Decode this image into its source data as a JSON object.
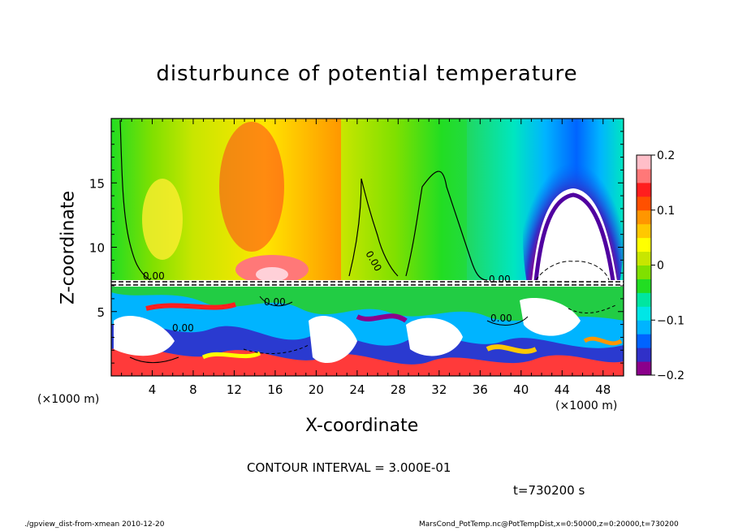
{
  "figure": {
    "title": "disturbunce of potential temperature",
    "x_unit_left": "(×1000 m)",
    "x_unit_right": "(×1000 m)",
    "contour_interval": "CONTOUR INTERVAL = 3.000E-01",
    "time_label": "t=730200 s",
    "footer_left": "./gpview_dist-from-xmean   2010-12-20",
    "footer_right": "MarsCond_PotTemp.nc@PotTempDist,x=0:50000,z=0:20000,t=730200"
  },
  "chart_data": {
    "type": "heatmap",
    "title": "disturbunce of potential temperature",
    "xlabel": "X-coordinate",
    "ylabel": "Z-coordinate",
    "x_ticks": [
      4,
      8,
      12,
      16,
      20,
      24,
      28,
      32,
      36,
      40,
      44,
      48
    ],
    "y_ticks": [
      5,
      10,
      15
    ],
    "xlim": [
      0,
      50
    ],
    "ylim": [
      0,
      20
    ],
    "colorbar": {
      "ticks": [
        0.2,
        0.1,
        0,
        -0.1,
        -0.2
      ],
      "tick_labels": [
        "0.2",
        "0.1",
        "0",
        "−0.1",
        "−0.2"
      ],
      "range": [
        -0.2,
        0.2
      ],
      "colors": [
        "#8b008b",
        "#3030c8",
        "#0064ff",
        "#00b4ff",
        "#00e6e6",
        "#00e6a0",
        "#22dd22",
        "#80e000",
        "#c8e600",
        "#ffff00",
        "#ffc800",
        "#ff9600",
        "#ff5000",
        "#ff1e1e",
        "#ff7878",
        "#ffbec8"
      ]
    },
    "contour_labels": [
      "0.00",
      "0.00",
      "0.00",
      "0.00",
      "0.00",
      "0.00"
    ],
    "contour_interval": 0.3,
    "time_s": 730200
  }
}
